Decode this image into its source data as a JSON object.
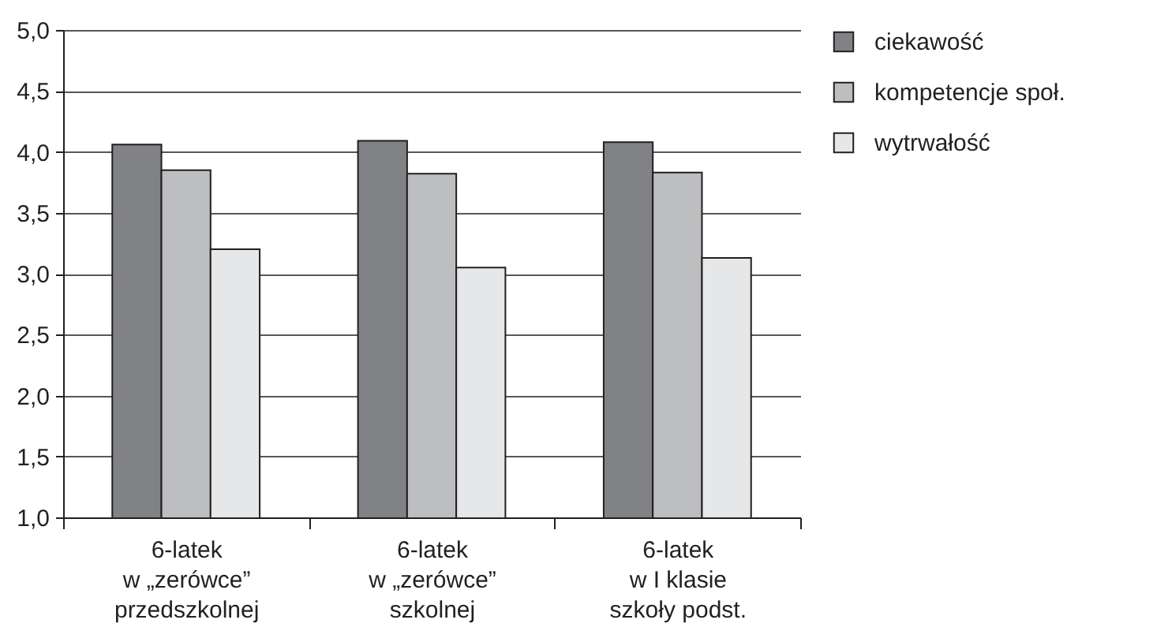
{
  "chart_data": {
    "type": "bar",
    "categories": [
      "6-latek\nw „zerówce”\nprzedszkolnej",
      "6-latek\nw „zerówce”\nszkolnej",
      "6-latek\nw I klasie\nszkoły podst."
    ],
    "series": [
      {
        "name": "ciekawość",
        "color": "#808285",
        "values": [
          4.06,
          4.09,
          4.08
        ]
      },
      {
        "name": "kompetencje społ.",
        "color": "#bcbec0",
        "values": [
          3.85,
          3.82,
          3.83
        ]
      },
      {
        "name": "wytrwałość",
        "color": "#e6e7e8",
        "values": [
          3.2,
          3.05,
          3.13
        ]
      }
    ],
    "ylim": [
      1,
      5
    ],
    "yticks": [
      {
        "value": 1,
        "label": "1,0"
      },
      {
        "value": 1.5,
        "label": "1,5"
      },
      {
        "value": 2,
        "label": "2,0"
      },
      {
        "value": 2.5,
        "label": "2,5"
      },
      {
        "value": 3,
        "label": "3,0"
      },
      {
        "value": 3.5,
        "label": "3,5"
      },
      {
        "value": 4,
        "label": "4,0"
      },
      {
        "value": 4.5,
        "label": "4,5"
      },
      {
        "value": 5,
        "label": "5,0"
      }
    ],
    "grid": "y",
    "legend": "right"
  }
}
